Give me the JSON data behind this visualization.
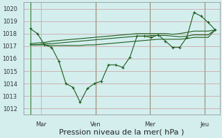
{
  "background_color": "#d4eeee",
  "grid_color": "#cc9999",
  "line_color": "#1a5c1a",
  "vline_color": "#2d7a2d",
  "ylim": [
    1011.5,
    1020.5
  ],
  "yticks": [
    1012,
    1013,
    1014,
    1015,
    1016,
    1017,
    1018,
    1019,
    1020
  ],
  "xlabel": "Pression niveau de la mer( hPa )",
  "day_labels": [
    "Mar",
    "Ven",
    "Mer",
    "Jeu"
  ],
  "day_positions": [
    0.5,
    3.0,
    5.5,
    8.0
  ],
  "vline_positions": [
    0.0,
    3.0,
    5.5,
    8.0
  ],
  "series": [
    [
      1018.4,
      1018.0,
      1017.1,
      1016.9,
      1015.8,
      1014.0,
      1013.7,
      1012.5,
      1013.6,
      1014.0,
      1014.2,
      1015.5,
      1015.5,
      1015.3,
      1016.1,
      1017.8,
      1017.8,
      1017.7,
      1017.9,
      1017.4,
      1016.9,
      1016.9,
      1017.7,
      1019.7,
      1019.4,
      1018.9,
      1018.3
    ],
    [
      1017.1,
      1017.1,
      1017.1,
      1017.05,
      1017.05,
      1017.05,
      1017.05,
      1017.05,
      1017.1,
      1017.1,
      1017.15,
      1017.2,
      1017.25,
      1017.3,
      1017.35,
      1017.4,
      1017.45,
      1017.5,
      1017.55,
      1017.55,
      1017.55,
      1017.55,
      1017.6,
      1017.7,
      1017.7,
      1017.7,
      1018.3
    ],
    [
      1017.1,
      1017.1,
      1017.2,
      1017.2,
      1017.25,
      1017.3,
      1017.35,
      1017.4,
      1017.45,
      1017.5,
      1017.55,
      1017.6,
      1017.65,
      1017.7,
      1017.75,
      1017.8,
      1017.8,
      1017.85,
      1017.85,
      1017.85,
      1017.8,
      1017.75,
      1017.8,
      1017.9,
      1017.9,
      1017.9,
      1018.3
    ],
    [
      1017.2,
      1017.25,
      1017.3,
      1017.4,
      1017.45,
      1017.5,
      1017.55,
      1017.6,
      1017.65,
      1017.7,
      1017.75,
      1017.8,
      1017.85,
      1017.9,
      1017.95,
      1018.0,
      1018.0,
      1018.0,
      1018.0,
      1018.0,
      1017.95,
      1018.0,
      1018.1,
      1018.2,
      1018.2,
      1018.2,
      1018.3
    ]
  ],
  "n_points": 27,
  "xlim": [
    -0.3,
    8.7
  ],
  "tick_fontsize": 6,
  "xlabel_fontsize": 8
}
